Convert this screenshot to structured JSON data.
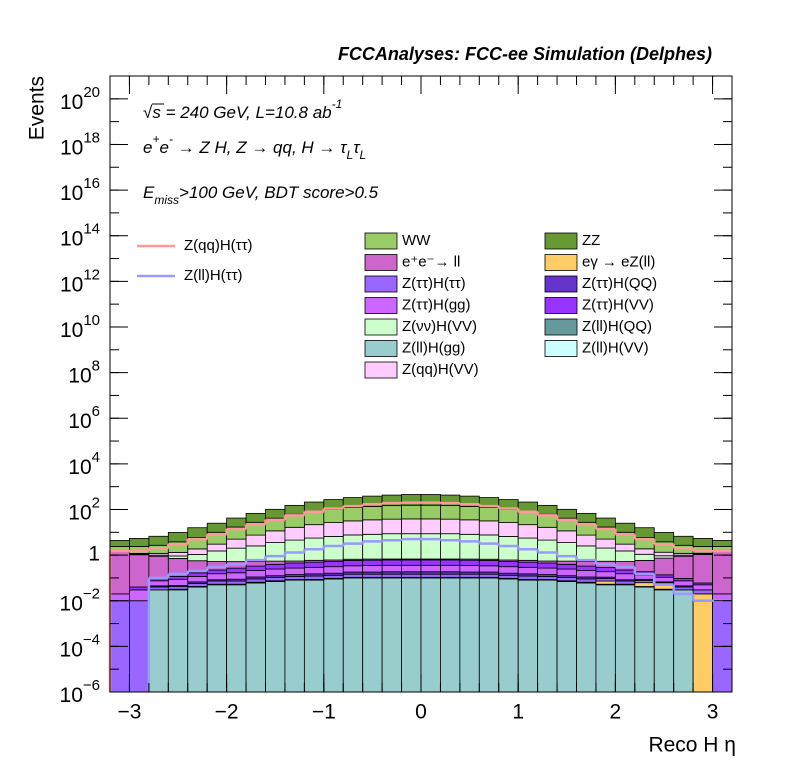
{
  "chart_data": {
    "type": "stacked-histogram",
    "title": "FCCAnalyses: FCC-ee Simulation (Delphes)",
    "x_label": "Reco H η",
    "y_label": "Events",
    "log_y": true,
    "annotations": [
      {
        "parts": [
          {
            "text": "√",
            "pos": "base"
          },
          {
            "text": "s = 240 GeV, L=10.8 ab",
            "pos": "base"
          },
          {
            "text": "-1",
            "pos": "sup"
          }
        ]
      },
      {
        "parts": [
          {
            "text": "e",
            "pos": "base"
          },
          {
            "text": "+",
            "pos": "sup"
          },
          {
            "text": "e",
            "pos": "base"
          },
          {
            "text": "-",
            "pos": "sup"
          },
          {
            "text": " → Z H, Z  → qq, H  → τ",
            "pos": "base"
          },
          {
            "text": "L",
            "pos": "sub"
          },
          {
            "text": "τ",
            "pos": "base"
          },
          {
            "text": "L",
            "pos": "sub"
          }
        ]
      },
      {
        "parts": [
          {
            "text": "E",
            "pos": "base"
          },
          {
            "text": "miss",
            "pos": "sub"
          },
          {
            "text": ">100 GeV, BDT score>0.5",
            "pos": "base"
          }
        ]
      }
    ],
    "bins": [
      -3.2,
      -3.0,
      -2.8,
      -2.6,
      -2.4,
      -2.2,
      -2.0,
      -1.8,
      -1.6,
      -1.4,
      -1.2,
      -1.0,
      -0.8,
      -0.6,
      -0.4,
      -0.2,
      0,
      0.2,
      0.4,
      0.6,
      0.8,
      1.0,
      1.2,
      1.4,
      1.6,
      1.8,
      2.0,
      2.2,
      2.4,
      2.6,
      2.8,
      3.0,
      3.2
    ],
    "xlim": [
      -3.2,
      3.2
    ],
    "xticks": [
      {
        "value": -3,
        "label": "−3"
      },
      {
        "value": -2,
        "label": "−2"
      },
      {
        "value": -1,
        "label": "−1"
      },
      0,
      1,
      2,
      3
    ],
    "ylim": [
      1e-06,
      1e+21
    ],
    "yticks": [
      {
        "value": 1e-06,
        "label": "10",
        "sup": "−6"
      },
      {
        "value": 0.0001,
        "label": "10",
        "sup": "−4"
      },
      {
        "value": 0.01,
        "label": "10",
        "sup": "−2"
      },
      1,
      {
        "value": 100,
        "label": "10",
        "sup": "2"
      },
      {
        "value": 10000,
        "label": "10",
        "sup": "4"
      },
      {
        "value": 1000000,
        "label": "10",
        "sup": "6"
      },
      {
        "value": 100000000,
        "label": "10",
        "sup": "8"
      },
      {
        "value": 10000000000,
        "label": "10",
        "sup": "10"
      },
      {
        "value": 1000000000000,
        "label": "10",
        "sup": "12"
      },
      {
        "value": 100000000000000,
        "label": "10",
        "sup": "14"
      },
      {
        "value": 10000000000000000,
        "label": "10",
        "sup": "16"
      },
      {
        "value": 1000000000000000000,
        "label": "10",
        "sup": "18"
      },
      {
        "value": 100000000000000000000,
        "label": "10",
        "sup": "20"
      }
    ],
    "series": [
      {
        "name": "WW",
        "color": "#99cc66",
        "values": [
          0.8,
          1.2,
          1.5,
          2.5,
          4,
          7,
          12,
          20,
          30,
          45,
          60,
          75,
          90,
          100,
          110,
          115,
          115,
          110,
          100,
          90,
          75,
          60,
          45,
          30,
          20,
          12,
          7,
          4,
          2.5,
          1.5,
          1.2,
          0.8
        ]
      },
      {
        "name": "ZZ",
        "color": "#669933",
        "values": [
          2,
          3,
          4,
          6,
          10,
          15,
          25,
          40,
          60,
          90,
          130,
          170,
          210,
          250,
          280,
          300,
          300,
          280,
          250,
          210,
          170,
          130,
          90,
          60,
          40,
          25,
          15,
          10,
          6,
          4,
          3,
          2
        ]
      },
      {
        "name": "e⁺e⁻→ ll",
        "color": "#cc66cc",
        "values": [
          1.5,
          1,
          0.8,
          0.6,
          0.4,
          0.3,
          0.25,
          0.2,
          0.15,
          0.1,
          0.1,
          0.08,
          0.08,
          0.07,
          0.06,
          0.06,
          0.06,
          0.06,
          0.07,
          0.08,
          0.08,
          0.1,
          0.1,
          0.15,
          0.2,
          0.25,
          0.3,
          0.4,
          0.6,
          0.8,
          1,
          1.5
        ]
      },
      {
        "name": "eγ → eZ(ll)",
        "color": "#ffcc66",
        "values": [
          0,
          0,
          0,
          0,
          0,
          0,
          0,
          0,
          0,
          0,
          0,
          0,
          0,
          0,
          0,
          0,
          0,
          0,
          0,
          0,
          0,
          0,
          0,
          0,
          0,
          0.02,
          0,
          0.02,
          0.02,
          0,
          0.02,
          0
        ]
      },
      {
        "name": "Z(ττ)H(ττ)",
        "color": "#9966ff",
        "values": [
          0.01,
          0.01,
          0.01,
          0.01,
          0.015,
          0.02,
          0.02,
          0.025,
          0.03,
          0.03,
          0.035,
          0.035,
          0.04,
          0.04,
          0.04,
          0.04,
          0.04,
          0.04,
          0.04,
          0.04,
          0.035,
          0.035,
          0.03,
          0.03,
          0.025,
          0.02,
          0.02,
          0.015,
          0.01,
          0.01,
          0.01,
          0.01
        ]
      },
      {
        "name": "Z(ττ)H(QQ)",
        "color": "#6633cc",
        "values": [
          0,
          0,
          0.005,
          0.005,
          0.01,
          0.01,
          0.015,
          0.02,
          0.02,
          0.025,
          0.03,
          0.03,
          0.035,
          0.035,
          0.04,
          0.04,
          0.04,
          0.04,
          0.035,
          0.035,
          0.03,
          0.03,
          0.025,
          0.02,
          0.02,
          0.015,
          0.01,
          0.01,
          0.005,
          0.005,
          0,
          0
        ]
      },
      {
        "name": "Z(ττ)H(gg)",
        "color": "#cc66ff",
        "values": [
          0.01,
          0.02,
          0.03,
          0.04,
          0.05,
          0.07,
          0.08,
          0.1,
          0.12,
          0.13,
          0.14,
          0.15,
          0.16,
          0.17,
          0.17,
          0.17,
          0.17,
          0.17,
          0.17,
          0.16,
          0.15,
          0.14,
          0.13,
          0.12,
          0.1,
          0.08,
          0.07,
          0.05,
          0.04,
          0.03,
          0.02,
          0.01
        ]
      },
      {
        "name": "Z(ττ)H(VV)",
        "color": "#9933ff",
        "values": [
          0,
          0.01,
          0.02,
          0.03,
          0.05,
          0.07,
          0.1,
          0.12,
          0.15,
          0.18,
          0.2,
          0.22,
          0.24,
          0.25,
          0.26,
          0.26,
          0.26,
          0.26,
          0.25,
          0.24,
          0.22,
          0.2,
          0.18,
          0.15,
          0.12,
          0.1,
          0.07,
          0.05,
          0.03,
          0.02,
          0.01,
          0
        ]
      },
      {
        "name": "Z(νν)H(VV)",
        "color": "#ccffcc",
        "values": [
          0.02,
          0.05,
          0.1,
          0.2,
          0.5,
          1,
          1.5,
          2,
          3,
          4,
          5,
          6,
          7,
          7.5,
          8,
          8,
          8,
          8,
          7.5,
          7,
          6,
          5,
          4,
          3,
          2,
          1.5,
          1,
          0.5,
          0.2,
          0.1,
          0.05,
          0.02
        ]
      },
      {
        "name": "Z(ll)H(QQ)",
        "color": "#669999",
        "values": [
          0,
          0,
          0,
          0.001,
          0.001,
          0.002,
          0.002,
          0.003,
          0.003,
          0.003,
          0.004,
          0.004,
          0.004,
          0.004,
          0.004,
          0.004,
          0.004,
          0.004,
          0.004,
          0.004,
          0.004,
          0.004,
          0.003,
          0.003,
          0.003,
          0.002,
          0.002,
          0.001,
          0.001,
          0,
          0,
          0
        ]
      },
      {
        "name": "Z(ll)H(gg)",
        "color": "#99cccc",
        "values": [
          0,
          0,
          0.03,
          0.03,
          0.04,
          0.05,
          0.05,
          0.06,
          0.07,
          0.08,
          0.08,
          0.09,
          0.1,
          0.1,
          0.1,
          0.1,
          0.1,
          0.1,
          0.1,
          0.1,
          0.09,
          0.08,
          0.08,
          0.07,
          0.06,
          0.05,
          0.05,
          0.04,
          0.03,
          0.03,
          0,
          0
        ]
      },
      {
        "name": "Z(ll)H(VV)",
        "color": "#ccffff",
        "values": [
          0,
          0,
          0,
          0.001,
          0.001,
          0.001,
          0.001,
          0.002,
          0.002,
          0.002,
          0.002,
          0.002,
          0.002,
          0.002,
          0.002,
          0.002,
          0.002,
          0.002,
          0.002,
          0.002,
          0.002,
          0.002,
          0.002,
          0.002,
          0.002,
          0.001,
          0.001,
          0.001,
          0.001,
          0,
          0,
          0
        ]
      },
      {
        "name": "Z(qq)H(VV)",
        "color": "#ffccff",
        "values": [
          0.05,
          0.1,
          0.2,
          0.4,
          0.8,
          1.5,
          3,
          5,
          8,
          12,
          16,
          20,
          24,
          27,
          29,
          30,
          30,
          29,
          27,
          24,
          20,
          16,
          12,
          8,
          5,
          3,
          1.5,
          0.8,
          0.4,
          0.2,
          0.1,
          0.05
        ]
      }
    ],
    "line_series": [
      {
        "name": "Z(qq)H(ττ)",
        "color": "#ff9999",
        "values": [
          1.5,
          1.5,
          2,
          3,
          5,
          8,
          14,
          22,
          35,
          55,
          80,
          110,
          140,
          170,
          190,
          200,
          200,
          190,
          170,
          140,
          110,
          80,
          55,
          35,
          22,
          14,
          8,
          5,
          3,
          2,
          1.5,
          1.5
        ]
      },
      {
        "name": "Z(ll)H(ττ)",
        "color": "#9999ff",
        "values": [
          null,
          null,
          0.1,
          0.15,
          0.2,
          0.3,
          0.4,
          0.6,
          0.9,
          1.3,
          1.8,
          2.5,
          3.2,
          4,
          4.5,
          5,
          5,
          4.5,
          4,
          3.2,
          2.5,
          1.8,
          1.3,
          0.9,
          0.6,
          0.4,
          0.3,
          0.15,
          0.05,
          0.02,
          0.01,
          0.01
        ]
      }
    ]
  }
}
